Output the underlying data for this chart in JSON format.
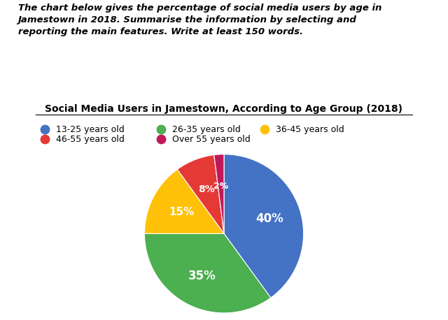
{
  "title": "Social Media Users in Jamestown, According to Age Group (2018)",
  "description_text": "The chart below gives the percentage of social media users by age in\nJamestown in 2018. Summarise the information by selecting and\nreporting the main features. Write at least 150 words.",
  "labels": [
    "13-25 years old",
    "26-35 years old",
    "36-45 years old",
    "46-55 years old",
    "Over 55 years old"
  ],
  "sizes": [
    40,
    35,
    15,
    8,
    2
  ],
  "colors": [
    "#4472C4",
    "#4CAF50",
    "#FFC107",
    "#E53935",
    "#C2185B"
  ],
  "pct_labels": [
    "40%",
    "35%",
    "15%",
    "8%",
    "2%"
  ],
  "background_color": "#FFFFFF",
  "title_fontsize": 10,
  "desc_fontsize": 9.5,
  "legend_fontsize": 9
}
